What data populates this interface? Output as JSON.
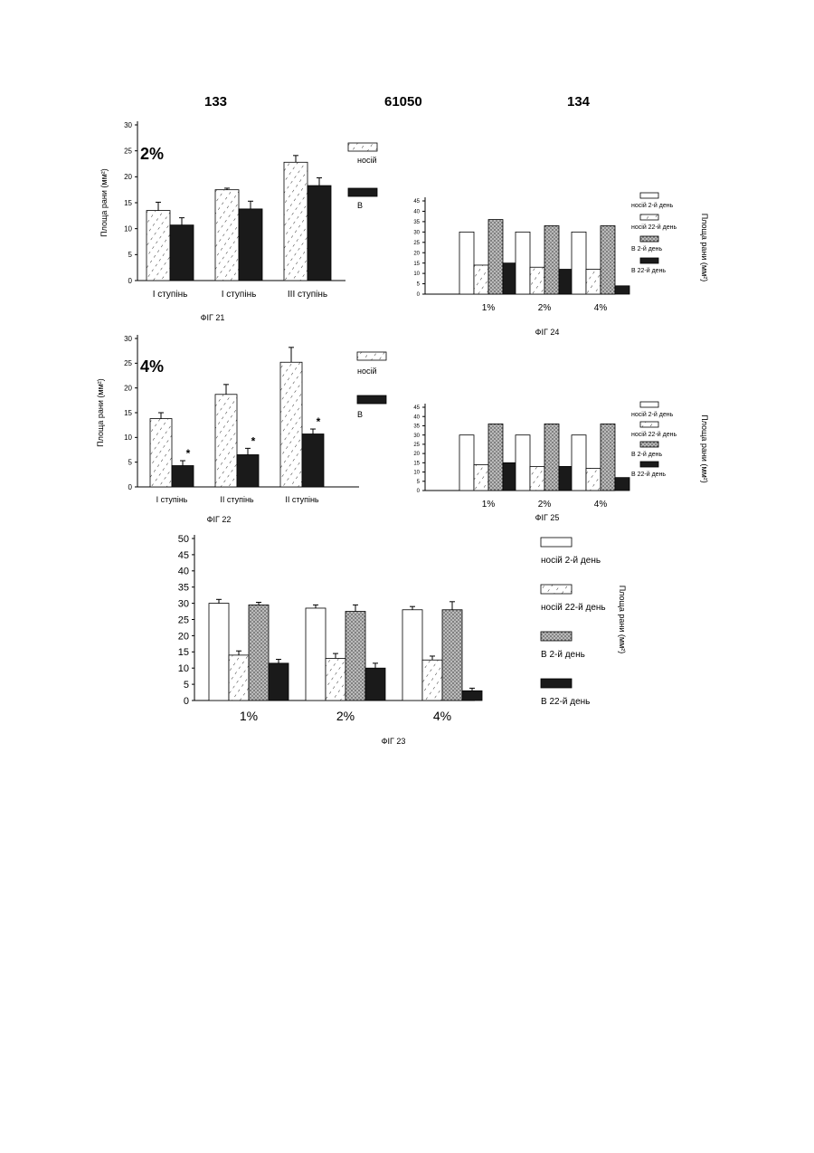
{
  "header": {
    "left_page": "133",
    "doc_number": "61050",
    "right_page": "134"
  },
  "chart_data": [
    {
      "id": "fig21",
      "type": "bar",
      "title": "2%",
      "caption": "ФІГ 21",
      "ylabel": "Площа рани (мм²)",
      "yticks": [
        0,
        5,
        10,
        15,
        20,
        25,
        30
      ],
      "ylim": [
        0,
        30
      ],
      "categories": [
        "I ступінь",
        "I ступінь",
        "III ступінь"
      ],
      "series": [
        {
          "name": "носій",
          "pattern": "hatch",
          "values": [
            13.5,
            17.5,
            22.8
          ],
          "errors": [
            1.6,
            0.3,
            1.3
          ]
        },
        {
          "name": "В",
          "pattern": "solid",
          "values": [
            10.7,
            13.8,
            18.3
          ],
          "errors": [
            1.4,
            1.5,
            1.5
          ]
        }
      ],
      "legend_position": "top-right"
    },
    {
      "id": "fig22",
      "type": "bar",
      "title": "4%",
      "caption": "ФІГ 22",
      "ylabel": "Площа рани (мм²)",
      "yticks": [
        0,
        5,
        10,
        15,
        20,
        25,
        30
      ],
      "ylim": [
        0,
        30
      ],
      "categories": [
        "I ступінь",
        "II ступінь",
        "II ступінь"
      ],
      "series": [
        {
          "name": "носій",
          "pattern": "hatch",
          "values": [
            13.8,
            18.7,
            25.2
          ],
          "errors": [
            1.2,
            2.0,
            3.0
          ]
        },
        {
          "name": "В",
          "pattern": "solid",
          "values": [
            4.3,
            6.5,
            10.7
          ],
          "errors": [
            1.0,
            1.3,
            1.0
          ]
        }
      ],
      "significance_marker": "*",
      "legend_position": "top-right"
    },
    {
      "id": "fig24",
      "type": "bar",
      "caption": "ФІГ 24",
      "ylabel": "Площа рани (мм²)",
      "yticks": [
        "0",
        "5",
        "10",
        "15",
        "20",
        "25",
        "30",
        "35",
        "40",
        "45"
      ],
      "ylim": [
        0,
        45
      ],
      "categories": [
        "1%",
        "2%",
        "4%"
      ],
      "series": [
        {
          "name": "носій 2-й день",
          "pattern": "white",
          "values": [
            30,
            30,
            30
          ]
        },
        {
          "name": "носій 22-й день",
          "pattern": "hatch",
          "values": [
            14,
            13,
            12
          ]
        },
        {
          "name": "В 2-й день",
          "pattern": "dots",
          "values": [
            36,
            33,
            33
          ]
        },
        {
          "name": "В 22-й день",
          "pattern": "solid",
          "values": [
            15,
            12,
            4
          ]
        }
      ],
      "legend_position": "right"
    },
    {
      "id": "fig25",
      "type": "bar",
      "caption": "ФІГ 25",
      "ylabel": "Площа рани (мм²)",
      "yticks": [
        "0",
        "5",
        "10",
        "15",
        "20",
        "25",
        "30",
        "35",
        "40",
        "45"
      ],
      "ylim": [
        0,
        45
      ],
      "categories": [
        "1%",
        "2%",
        "4%"
      ],
      "series": [
        {
          "name": "носій 2-й день",
          "pattern": "white",
          "values": [
            30,
            30,
            30
          ]
        },
        {
          "name": "носій 22-й день",
          "pattern": "hatch",
          "values": [
            14,
            13,
            12
          ]
        },
        {
          "name": "В 2-й день",
          "pattern": "dots",
          "values": [
            36,
            36,
            36
          ]
        },
        {
          "name": "В 22-й день",
          "pattern": "solid",
          "values": [
            15,
            13,
            7
          ]
        }
      ],
      "legend_position": "right"
    },
    {
      "id": "fig23",
      "type": "bar",
      "caption": "ФІГ 23",
      "ylabel": "Площа рани (мм²)",
      "yticks": [
        0,
        5,
        10,
        15,
        20,
        25,
        30,
        35,
        40,
        45,
        50
      ],
      "ylim": [
        0,
        50
      ],
      "categories": [
        "1%",
        "2%",
        "4%"
      ],
      "series": [
        {
          "name": "носій 2-й день",
          "pattern": "white",
          "values": [
            30,
            28.5,
            28
          ],
          "errors": [
            1.2,
            1.0,
            1.0
          ]
        },
        {
          "name": "носій 22-й день",
          "pattern": "hatch",
          "values": [
            14,
            13,
            12.5
          ],
          "errors": [
            1.3,
            1.5,
            1.2
          ]
        },
        {
          "name": "В 2-й день",
          "pattern": "dots",
          "values": [
            29.5,
            27.5,
            28
          ],
          "errors": [
            0.8,
            2.0,
            2.5
          ]
        },
        {
          "name": "В 22-й день",
          "pattern": "solid",
          "values": [
            11.5,
            10,
            3
          ],
          "errors": [
            1.2,
            1.5,
            0.8
          ]
        }
      ],
      "legend_position": "right"
    }
  ]
}
